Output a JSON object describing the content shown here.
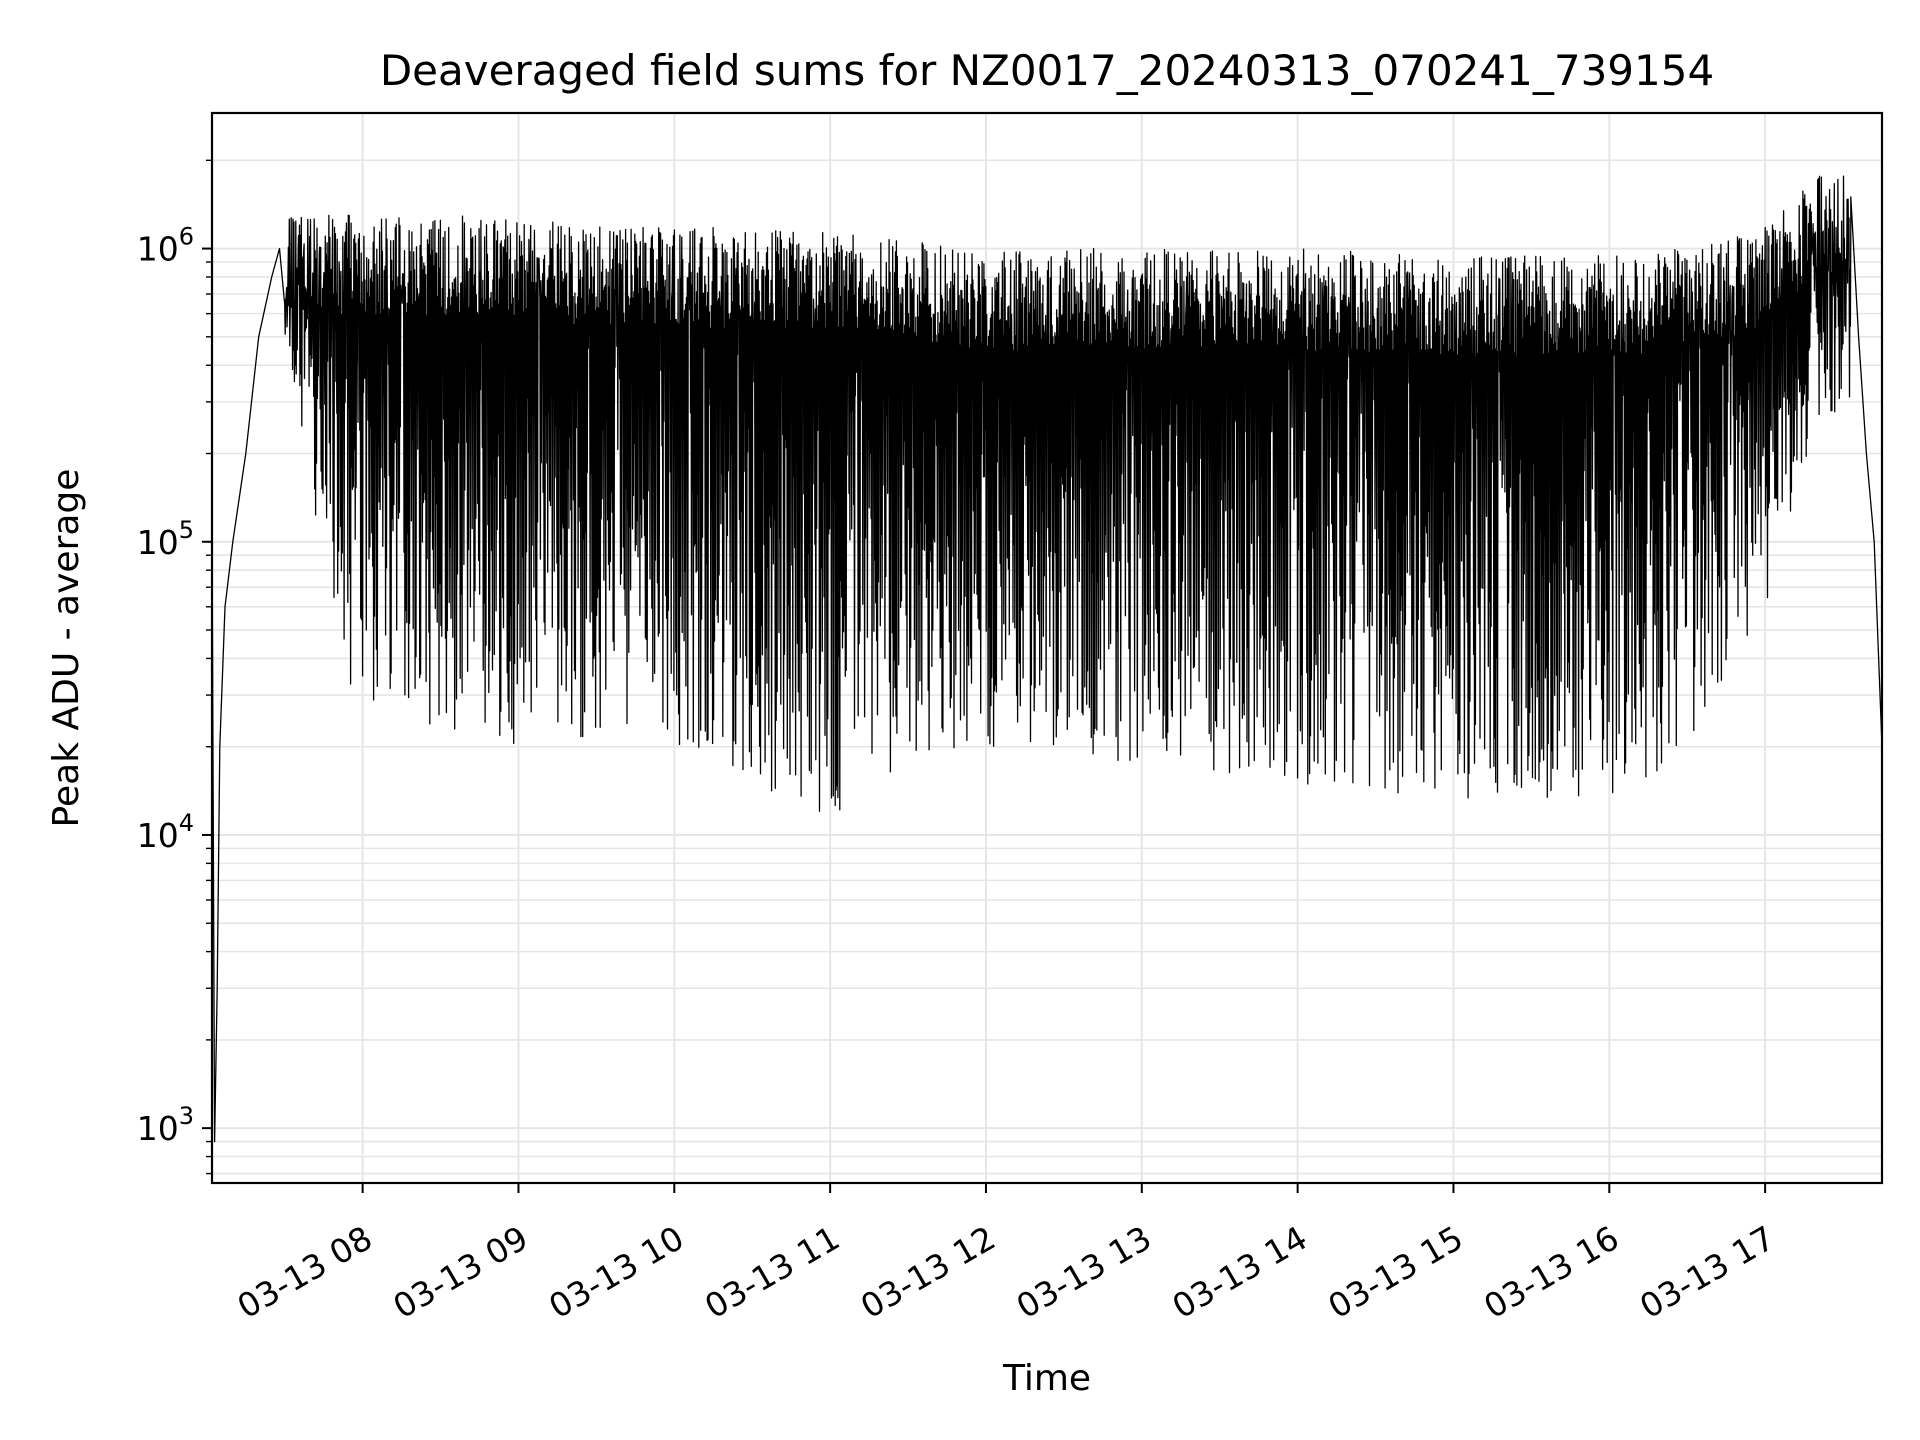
{
  "chart_data": {
    "type": "line",
    "title": "Deaveraged field sums for NZ0017_20240313_070241_739154",
    "xlabel": "Time",
    "ylabel": "Peak ADU - average",
    "y_scale": "log",
    "grid": true,
    "line_color": "#000000",
    "grid_color": "#e6e6e6",
    "x_range": [
      "2024-03-13 07:02",
      "2024-03-13 17:45"
    ],
    "ylim": [
      650,
      2900000
    ],
    "x_ticks": [
      {
        "t": "2024-03-13 08:00",
        "label": "03-13 08"
      },
      {
        "t": "2024-03-13 09:00",
        "label": "03-13 09"
      },
      {
        "t": "2024-03-13 10:00",
        "label": "03-13 10"
      },
      {
        "t": "2024-03-13 11:00",
        "label": "03-13 11"
      },
      {
        "t": "2024-03-13 12:00",
        "label": "03-13 12"
      },
      {
        "t": "2024-03-13 13:00",
        "label": "03-13 13"
      },
      {
        "t": "2024-03-13 14:00",
        "label": "03-13 14"
      },
      {
        "t": "2024-03-13 15:00",
        "label": "03-13 15"
      },
      {
        "t": "2024-03-13 16:00",
        "label": "03-13 16"
      },
      {
        "t": "2024-03-13 17:00",
        "label": "03-13 17"
      }
    ],
    "y_ticks": [
      {
        "value": 1000,
        "base": "10",
        "exp": "3"
      },
      {
        "value": 10000,
        "base": "10",
        "exp": "4"
      },
      {
        "value": 100000,
        "base": "10",
        "exp": "5"
      },
      {
        "value": 1000000,
        "base": "10",
        "exp": "6"
      }
    ],
    "series": [
      {
        "x": [
          "2024-03-13 07:02",
          "2024-03-13 07:03",
          "2024-03-13 07:04",
          "2024-03-13 07:05",
          "2024-03-13 07:07",
          "2024-03-13 07:10",
          "2024-03-13 07:15",
          "2024-03-13 07:20",
          "2024-03-13 07:25",
          "2024-03-13 07:28"
        ],
        "y": [
          120000,
          900,
          3000,
          20000,
          60000,
          100000,
          200000,
          500000,
          800000,
          1000000
        ],
        "envelope": [
          {
            "t": "2024-03-13 07:30",
            "high": 1300000,
            "low": 500000
          },
          {
            "t": "2024-03-13 07:40",
            "high": 1400000,
            "low": 150000
          },
          {
            "t": "2024-03-13 07:55",
            "high": 1300000,
            "low": 30000
          },
          {
            "t": "2024-03-13 08:30",
            "high": 1300000,
            "low": 22000
          },
          {
            "t": "2024-03-13 09:00",
            "high": 1300000,
            "low": 20000
          },
          {
            "t": "2024-03-13 09:30",
            "high": 1200000,
            "low": 22000
          },
          {
            "t": "2024-03-13 10:00",
            "high": 1200000,
            "low": 20000
          },
          {
            "t": "2024-03-13 10:55",
            "high": 1150000,
            "low": 10500
          },
          {
            "t": "2024-03-13 11:30",
            "high": 1100000,
            "low": 18000
          },
          {
            "t": "2024-03-13 12:00",
            "high": 1000000,
            "low": 20000
          },
          {
            "t": "2024-03-13 12:30",
            "high": 1000000,
            "low": 20000
          },
          {
            "t": "2024-03-13 13:00",
            "high": 1000000,
            "low": 17000
          },
          {
            "t": "2024-03-13 14:00",
            "high": 1000000,
            "low": 15000
          },
          {
            "t": "2024-03-13 15:00",
            "high": 950000,
            "low": 13000
          },
          {
            "t": "2024-03-13 16:00",
            "high": 950000,
            "low": 13000
          },
          {
            "t": "2024-03-13 16:30",
            "high": 1000000,
            "low": 18000
          },
          {
            "t": "2024-03-13 17:00",
            "high": 1200000,
            "low": 60000
          },
          {
            "t": "2024-03-13 17:20",
            "high": 1800000,
            "low": 250000
          },
          {
            "t": "2024-03-13 17:33",
            "high": 1800000,
            "low": 300000
          }
        ],
        "tail_x": [
          "2024-03-13 17:33",
          "2024-03-13 17:36",
          "2024-03-13 17:39",
          "2024-03-13 17:42",
          "2024-03-13 17:45"
        ],
        "tail_y": [
          1500000,
          500000,
          200000,
          100000,
          20000
        ]
      }
    ]
  }
}
